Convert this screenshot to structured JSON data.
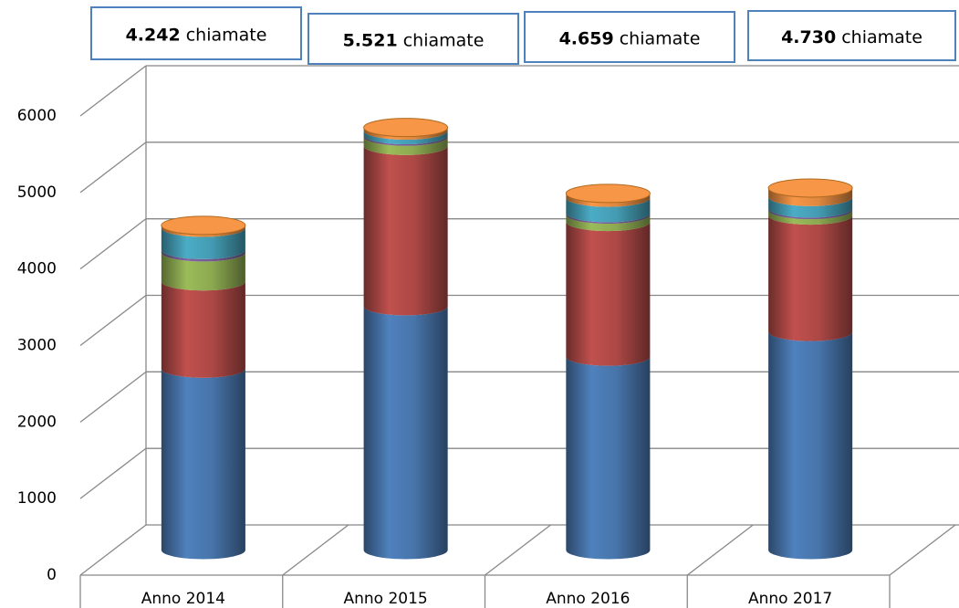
{
  "chart_data": {
    "type": "bar3d_cylinder_stacked",
    "categories": [
      "Anno 2014",
      "Anno 2015",
      "Anno 2016",
      "Anno 2017"
    ],
    "series": [
      {
        "color": "#4f81bd",
        "values": [
          2370,
          3186,
          2527,
          2850
        ]
      },
      {
        "color": "#c0504d",
        "values": [
          1140,
          2095,
          1760,
          1521
        ]
      },
      {
        "color": "#9bbb59",
        "values": [
          380,
          120,
          96,
          72
        ]
      },
      {
        "color": "#8064a2",
        "values": [
          30,
          20,
          20,
          20
        ]
      },
      {
        "color": "#4bacc6",
        "values": [
          290,
          60,
          200,
          150
        ]
      },
      {
        "color": "#f79646",
        "values": [
          32,
          40,
          56,
          117
        ]
      }
    ],
    "annotations": [
      {
        "number": "4.242",
        "unit": "chiamate"
      },
      {
        "number": "5.521",
        "unit": "chiamate"
      },
      {
        "number": "4.659",
        "unit": "chiamate"
      },
      {
        "number": "4.730",
        "unit": "chiamate"
      }
    ],
    "ylim": [
      0,
      6000
    ],
    "yticks": [
      0,
      1000,
      2000,
      3000,
      4000,
      5000,
      6000
    ],
    "grid": true
  }
}
